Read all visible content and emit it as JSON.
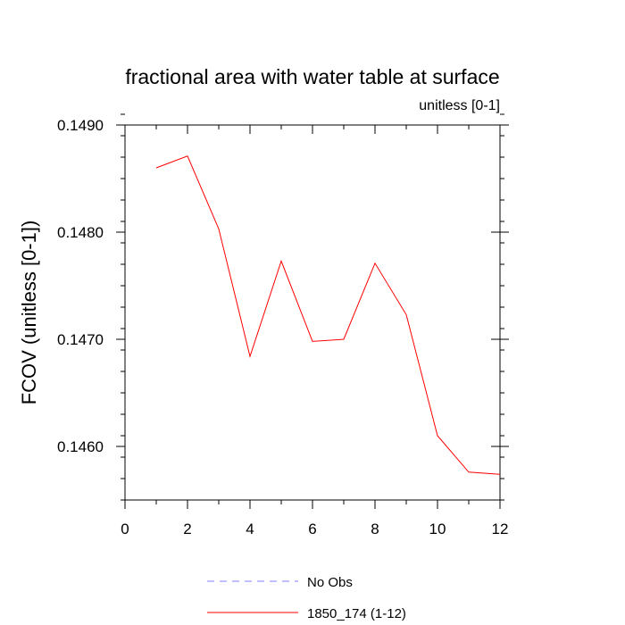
{
  "chart_data": {
    "type": "line",
    "title": "fractional area with water table at surface",
    "subtitle": "unitless [0-1]",
    "xlabel": "",
    "ylabel": "FCOV  (unitless [0-1])",
    "xlim": [
      0,
      12
    ],
    "ylim": [
      0.1455,
      0.149
    ],
    "x_ticks": [
      0,
      2,
      4,
      6,
      8,
      10,
      12
    ],
    "x_tick_labels": [
      "0",
      "2",
      "4",
      "6",
      "8",
      "10",
      "12"
    ],
    "y_ticks": [
      0.146,
      0.147,
      0.148,
      0.149
    ],
    "y_tick_labels": [
      "0.1460",
      "0.1470",
      "0.1480",
      "0.1490"
    ],
    "grid": false,
    "legend_position": "bottom-center",
    "series": [
      {
        "name": "No Obs",
        "color": "#8080ff",
        "style": "dashed",
        "x": [],
        "y": []
      },
      {
        "name": "1850_174 (1-12)",
        "color": "#ff0000",
        "style": "solid",
        "x": [
          1,
          2,
          3,
          4,
          5,
          6,
          7,
          8,
          9,
          10,
          11,
          12
        ],
        "y": [
          0.1486,
          0.14871,
          0.14803,
          0.14684,
          0.14773,
          0.14698,
          0.147,
          0.14771,
          0.14723,
          0.1461,
          0.14576,
          0.14574
        ]
      }
    ]
  }
}
